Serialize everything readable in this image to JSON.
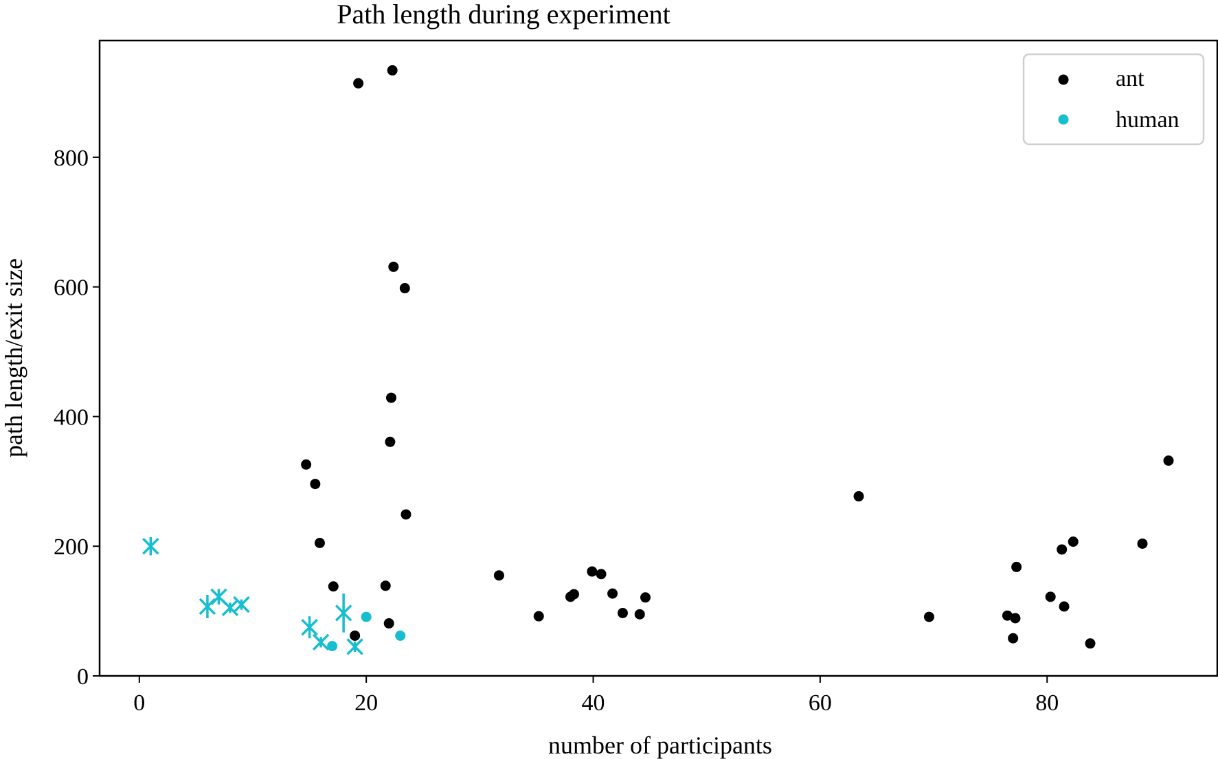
{
  "chart_data": {
    "type": "scatter",
    "title": "Path length during experiment",
    "xlabel": "number of participants",
    "ylabel": "path length/exit size",
    "xlim": [
      -3.5,
      95
    ],
    "ylim": [
      0,
      980
    ],
    "xticks": [
      0,
      20,
      40,
      60,
      80
    ],
    "yticks": [
      0,
      200,
      400,
      600,
      800
    ],
    "grid": false,
    "legend_position": "top-right",
    "series": [
      {
        "name": "ant",
        "color": "#000000",
        "marker": "dot",
        "points": [
          {
            "x": 19.3,
            "y": 914
          },
          {
            "x": 22.3,
            "y": 934
          },
          {
            "x": 22.4,
            "y": 631
          },
          {
            "x": 23.4,
            "y": 598
          },
          {
            "x": 22.2,
            "y": 429
          },
          {
            "x": 22.1,
            "y": 361
          },
          {
            "x": 14.7,
            "y": 326
          },
          {
            "x": 15.5,
            "y": 296
          },
          {
            "x": 23.5,
            "y": 249
          },
          {
            "x": 15.9,
            "y": 205
          },
          {
            "x": 17.1,
            "y": 138
          },
          {
            "x": 21.7,
            "y": 139
          },
          {
            "x": 22.0,
            "y": 81
          },
          {
            "x": 19.0,
            "y": 62
          },
          {
            "x": 31.7,
            "y": 155
          },
          {
            "x": 35.2,
            "y": 92
          },
          {
            "x": 38.0,
            "y": 122
          },
          {
            "x": 38.3,
            "y": 126
          },
          {
            "x": 39.9,
            "y": 161
          },
          {
            "x": 40.7,
            "y": 157
          },
          {
            "x": 41.7,
            "y": 127
          },
          {
            "x": 42.6,
            "y": 97
          },
          {
            "x": 44.1,
            "y": 95
          },
          {
            "x": 44.6,
            "y": 121
          },
          {
            "x": 63.4,
            "y": 277
          },
          {
            "x": 69.6,
            "y": 91
          },
          {
            "x": 76.5,
            "y": 93
          },
          {
            "x": 77.0,
            "y": 58
          },
          {
            "x": 77.2,
            "y": 89
          },
          {
            "x": 77.3,
            "y": 168
          },
          {
            "x": 80.3,
            "y": 122
          },
          {
            "x": 81.3,
            "y": 195
          },
          {
            "x": 81.5,
            "y": 107
          },
          {
            "x": 82.3,
            "y": 207
          },
          {
            "x": 83.8,
            "y": 50
          },
          {
            "x": 88.4,
            "y": 204
          },
          {
            "x": 90.7,
            "y": 332
          }
        ]
      },
      {
        "name": "human",
        "color": "#17becf",
        "marker": "dot",
        "points": [
          {
            "x": 17.0,
            "y": 46
          },
          {
            "x": 20.0,
            "y": 91
          },
          {
            "x": 23.0,
            "y": 62
          }
        ]
      }
    ],
    "human_error_markers": [
      {
        "x": 1,
        "y": 200,
        "y_err": 14
      },
      {
        "x": 6,
        "y": 107,
        "y_err": 18
      },
      {
        "x": 7,
        "y": 122,
        "y_err": 12
      },
      {
        "x": 8,
        "y": 105,
        "y_err": 8
      },
      {
        "x": 9,
        "y": 110,
        "y_err": 8
      },
      {
        "x": 15,
        "y": 75,
        "y_err": 17
      },
      {
        "x": 16,
        "y": 52,
        "y_err": 8
      },
      {
        "x": 18,
        "y": 97,
        "y_err": 30
      },
      {
        "x": 19,
        "y": 45,
        "y_err": 8
      }
    ]
  }
}
